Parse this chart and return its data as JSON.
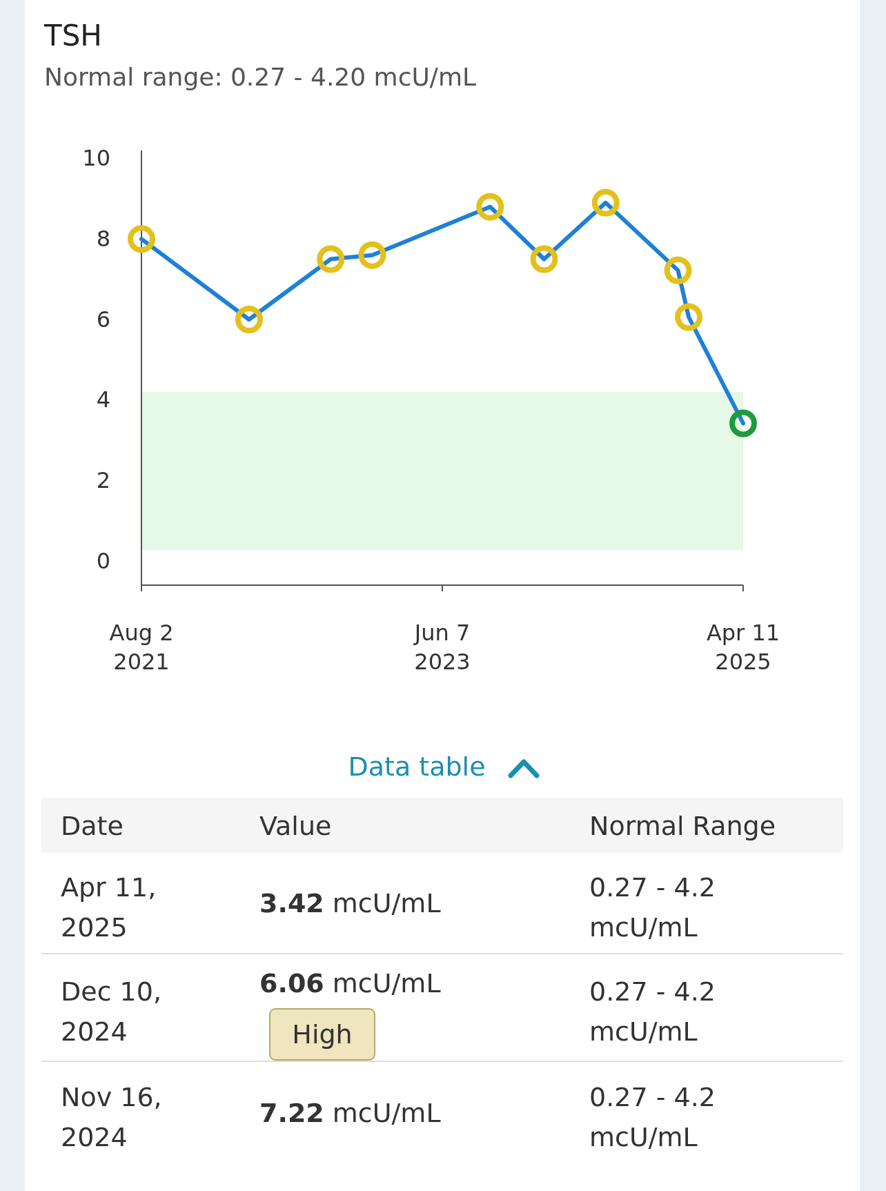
{
  "chart_data": {
    "type": "line",
    "title": "TSH",
    "subtitle": "Normal range: 0.27 - 4.20 mcU/mL",
    "x": [
      "2021-08-02",
      "2022-03-31",
      "2022-09-30",
      "2023-01-01",
      "2023-09-22",
      "2024-01-21",
      "2024-06-07",
      "2024-11-16",
      "2024-12-10",
      "2025-04-11"
    ],
    "series": [
      {
        "color": "#1f80d8",
        "values": [
          8.0,
          6.0,
          7.5,
          7.6,
          8.8,
          7.5,
          8.9,
          7.22,
          6.06,
          3.42
        ],
        "colors": [
          "#e3c01c",
          "#e3c01c",
          "#e3c01c",
          "#e3c01c",
          "#e3c01c",
          "#e3c01c",
          "#e3c01c",
          "#e3c01c",
          "#e3c01c",
          "#1f9a3c"
        ]
      }
    ],
    "xlim": [
      "2021-08-02",
      "2025-04-11"
    ],
    "xticks": [
      {
        "value": "2021-08-02",
        "label": "Aug 2 2021"
      },
      {
        "value": "2023-06-07",
        "label": "Jun 7 2023"
      },
      {
        "value": "2025-04-11",
        "label": "Apr 11 2025"
      }
    ],
    "ylim": [
      -0.6,
      10.2
    ],
    "yticks": [
      0,
      2,
      4,
      6,
      8,
      10
    ],
    "bands": [
      {
        "axis": "y",
        "from": 0.27,
        "to": 4.2,
        "color": "#e6f8e6"
      }
    ],
    "grid": false,
    "marker": "circle",
    "line_style": "solid",
    "annotations": [
      "Data table",
      "Date",
      "Value",
      "Normal Range",
      "Apr 11, 2025",
      "3.42 mcU/mL",
      "0.27 - 4.2 mcU/mL",
      "Dec 10, 2024",
      "6.06 mcU/mL",
      "0.27 - 4.2 mcU/mL",
      "Nov 16, 2024",
      "7.22 mcU/mL",
      "0.27 - 4.2 mcU/mL",
      "High"
    ]
  }
}
